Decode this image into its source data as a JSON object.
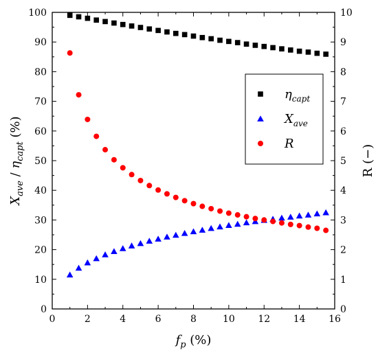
{
  "chart_data": {
    "type": "scatter",
    "x_axis": {
      "label_var": "f",
      "label_sub": "p",
      "label_unit": " (%)",
      "lim": [
        0,
        16
      ],
      "ticks": [
        "0",
        "2",
        "4",
        "6",
        "8",
        "10",
        "12",
        "14",
        "16"
      ]
    },
    "y_axis_left": {
      "label_var1": "X",
      "label_sub1": "ave",
      "label_sep": " / ",
      "label_var2": "η",
      "label_sub2": "capt",
      "label_unit": " (%)",
      "lim": [
        0,
        100
      ],
      "ticks": [
        "0",
        "10",
        "20",
        "30",
        "40",
        "50",
        "60",
        "70",
        "80",
        "90",
        "100"
      ]
    },
    "y_axis_right": {
      "label": "R (−)",
      "lim": [
        0,
        10
      ],
      "ticks": [
        "0",
        "1",
        "2",
        "3",
        "4",
        "5",
        "6",
        "7",
        "8",
        "9",
        "10"
      ]
    },
    "legend_position": "upper-right",
    "grid": false,
    "x": [
      1,
      1.5,
      2,
      2.5,
      3,
      3.5,
      4,
      4.5,
      5,
      5.5,
      6,
      6.5,
      7,
      7.5,
      8,
      8.5,
      9,
      9.5,
      10,
      10.5,
      11,
      11.5,
      12,
      12.5,
      13,
      13.5,
      14,
      14.5,
      15,
      15.5
    ],
    "series": [
      {
        "legend_var": "η",
        "legend_sub": "capt",
        "axis": "left",
        "marker": "square",
        "color": "#000000",
        "values": [
          99.0,
          98.5,
          98.0,
          97.4,
          96.9,
          96.4,
          95.9,
          95.4,
          94.9,
          94.4,
          93.9,
          93.4,
          92.9,
          92.5,
          92.0,
          91.5,
          91.1,
          90.6,
          90.2,
          89.8,
          89.3,
          88.9,
          88.5,
          88.1,
          87.7,
          87.3,
          86.9,
          86.6,
          86.2,
          85.9
        ]
      },
      {
        "legend_var": "X",
        "legend_sub": "ave",
        "axis": "left",
        "marker": "triangle",
        "color": "#0000ff",
        "values": [
          11.5,
          13.8,
          15.6,
          17.0,
          18.3,
          19.4,
          20.4,
          21.3,
          22.1,
          22.9,
          23.6,
          24.3,
          24.9,
          25.5,
          26.1,
          26.6,
          27.2,
          27.7,
          28.2,
          28.6,
          29.1,
          29.5,
          29.9,
          30.3,
          30.7,
          31.0,
          31.4,
          31.7,
          32.1,
          32.5
        ]
      },
      {
        "legend_var": "R",
        "legend_sub": "",
        "axis": "right",
        "marker": "circle",
        "color": "#ff0000",
        "values": [
          8.63,
          7.22,
          6.39,
          5.82,
          5.37,
          5.03,
          4.76,
          4.53,
          4.33,
          4.16,
          4.01,
          3.88,
          3.76,
          3.65,
          3.55,
          3.46,
          3.38,
          3.3,
          3.23,
          3.17,
          3.11,
          3.05,
          3.0,
          2.95,
          2.9,
          2.85,
          2.81,
          2.76,
          2.72,
          2.65
        ]
      }
    ]
  }
}
